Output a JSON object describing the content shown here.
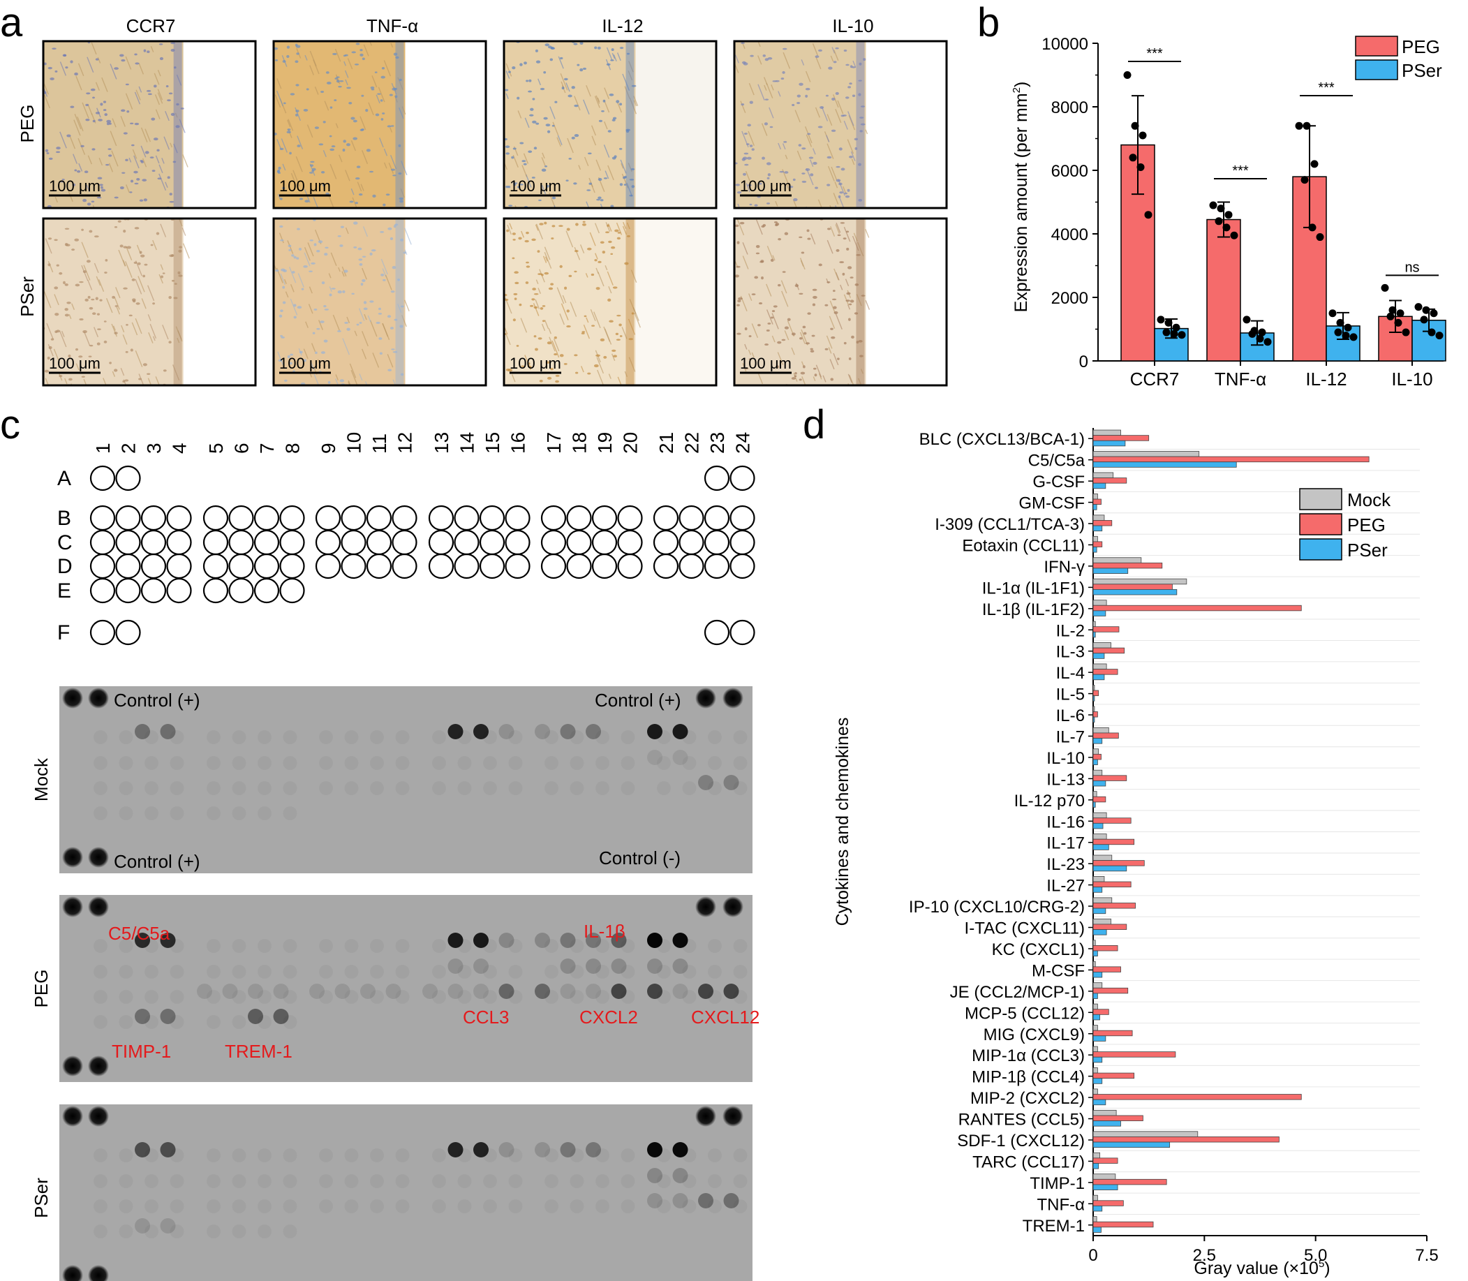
{
  "panels": {
    "a": "a",
    "b": "b",
    "c": "c",
    "d": "d"
  },
  "panel_a": {
    "columns": [
      "CCR7",
      "TNF-α",
      "IL-12",
      "IL-10"
    ],
    "rows": [
      "PEG",
      "PSer"
    ],
    "scale_bar": "100 μm",
    "tile_palettes": [
      [
        "#dcc59b",
        "#6f79b3",
        "#ffffff"
      ],
      [
        "#e2b873",
        "#6c8ec2",
        "#ffffff"
      ],
      [
        "#e6cfa6",
        "#5e82bd",
        "#f7f4ee"
      ],
      [
        "#e0cba4",
        "#7a84b8",
        "#ffffff"
      ],
      [
        "#e9d8bf",
        "#b08d6a",
        "#ffffff"
      ],
      [
        "#e6c79c",
        "#9ab4d6",
        "#ffffff"
      ],
      [
        "#f0e1c7",
        "#c08a3e",
        "#fbf8f2"
      ],
      [
        "#e8d8c0",
        "#a47c5c",
        "#ffffff"
      ]
    ]
  },
  "panel_b": {
    "chart_data": {
      "type": "bar",
      "categories": [
        "CCR7",
        "TNF-α",
        "IL-12",
        "IL-10"
      ],
      "series": [
        {
          "name": "PEG",
          "color": "#f56b6b",
          "values": [
            6800,
            4450,
            5800,
            1400
          ],
          "errors": [
            1550,
            550,
            1600,
            500
          ],
          "points": [
            [
              9000,
              7400,
              7100,
              6400,
              6100,
              4600
            ],
            [
              4900,
              4800,
              4600,
              4400,
              4200,
              3950
            ],
            [
              7400,
              7400,
              6200,
              5700,
              4200,
              3900
            ],
            [
              2300,
              1600,
              1500,
              1400,
              1200,
              900
            ]
          ]
        },
        {
          "name": "PSer",
          "color": "#3fb2ee",
          "values": [
            1020,
            880,
            1100,
            1280
          ],
          "errors": [
            300,
            380,
            420,
            350
          ],
          "points": [
            [
              1300,
              1200,
              1050,
              900,
              850,
              820
            ],
            [
              1300,
              950,
              900,
              850,
              700,
              600
            ],
            [
              1500,
              1200,
              1050,
              900,
              800,
              750
            ],
            [
              1700,
              1600,
              1500,
              1300,
              900,
              800
            ]
          ]
        }
      ],
      "significance": [
        "***",
        "***",
        "***",
        "ns"
      ],
      "ylabel_main": "Expression amount (per mm",
      "ylabel_sup": "2",
      "ylabel_close": ")",
      "yticks": [
        "0",
        "2000",
        "4000",
        "6000",
        "8000",
        "10000"
      ],
      "ylim": [
        0,
        10000
      ],
      "legend": [
        "PEG",
        "PSer"
      ]
    }
  },
  "panel_c": {
    "columns": [
      "1",
      "2",
      "3",
      "4",
      "5",
      "6",
      "7",
      "8",
      "9",
      "10",
      "11",
      "12",
      "13",
      "14",
      "15",
      "16",
      "17",
      "18",
      "19",
      "20",
      "21",
      "22",
      "23",
      "24"
    ],
    "rows": [
      "A",
      "B",
      "C",
      "D",
      "E",
      "F"
    ],
    "blots": [
      {
        "label": "Mock",
        "annotations": [
          {
            "text": "Control (+)",
            "color": "#000000"
          },
          {
            "text": "Control (+)",
            "color": "#000000"
          },
          {
            "text": "Control (+)",
            "color": "#000000"
          },
          {
            "text": "Control (-)",
            "color": "#000000"
          }
        ]
      },
      {
        "label": "PEG",
        "annotations": [
          {
            "text": "C5/C5a",
            "color": "#e41a1c"
          },
          {
            "text": "IL-1β",
            "color": "#e41a1c"
          },
          {
            "text": "CCL3",
            "color": "#e41a1c"
          },
          {
            "text": "CXCL2",
            "color": "#e41a1c"
          },
          {
            "text": "CXCL12",
            "color": "#e41a1c"
          },
          {
            "text": "TIMP-1",
            "color": "#e41a1c"
          },
          {
            "text": "TREM-1",
            "color": "#e41a1c"
          }
        ]
      },
      {
        "label": "PSer",
        "annotations": []
      }
    ]
  },
  "panel_d": {
    "chart_data": {
      "type": "bar",
      "orientation": "horizontal",
      "categories": [
        "BLC (CXCL13/BCA-1)",
        "C5/C5a",
        "G-CSF",
        "GM-CSF",
        "I-309 (CCL1/TCA-3)",
        "Eotaxin (CCL11)",
        "IFN-γ",
        "IL-1α (IL-1F1)",
        "IL-1β (IL-1F2)",
        "IL-2",
        "IL-3",
        "IL-4",
        "IL-5",
        "IL-6",
        "IL-7",
        "IL-10",
        "IL-13",
        "IL-12 p70",
        "IL-16",
        "IL-17",
        "IL-23",
        "IL-27",
        "IP-10 (CXCL10/CRG-2)",
        "I-TAC (CXCL11)",
        "KC (CXCL1)",
        "M-CSF",
        "JE (CCL2/MCP-1)",
        "MCP-5 (CCL12)",
        "MIG (CXCL9)",
        "MIP-1α (CCL3)",
        "MIP-1β (CCL4)",
        "MIP-2 (CXCL2)",
        "RANTES (CCL5)",
        "SDF-1 (CXCL12)",
        "TARC (CCL17)",
        "TIMP-1",
        "TNF-α",
        "TREM-1"
      ],
      "series": [
        {
          "name": "Mock",
          "color": "#c4c4c4",
          "values": [
            0.62,
            2.38,
            0.45,
            0.1,
            0.25,
            0.1,
            1.08,
            2.1,
            0.3,
            0.05,
            0.4,
            0.3,
            0.03,
            0.03,
            0.35,
            0.12,
            0.2,
            0.08,
            0.3,
            0.3,
            0.42,
            0.25,
            0.42,
            0.4,
            0.05,
            0.05,
            0.2,
            0.1,
            0.1,
            0.1,
            0.1,
            0.1,
            0.52,
            2.35,
            0.15,
            0.5,
            0.1,
            0.08
          ]
        },
        {
          "name": "PEG",
          "color": "#f56b6b",
          "values": [
            1.25,
            6.2,
            0.75,
            0.18,
            0.42,
            0.2,
            1.55,
            1.78,
            4.68,
            0.58,
            0.7,
            0.55,
            0.12,
            0.1,
            0.57,
            0.18,
            0.75,
            0.28,
            0.85,
            0.92,
            1.15,
            0.85,
            0.95,
            0.75,
            0.55,
            0.62,
            0.78,
            0.35,
            0.88,
            1.85,
            0.92,
            4.68,
            1.12,
            4.18,
            0.55,
            1.65,
            0.68,
            1.35
          ]
        },
        {
          "name": "PSer",
          "color": "#3fb2ee",
          "values": [
            0.72,
            3.22,
            0.28,
            0.08,
            0.2,
            0.08,
            0.78,
            1.88,
            0.28,
            0.05,
            0.25,
            0.25,
            0.03,
            0.03,
            0.2,
            0.1,
            0.28,
            0.05,
            0.22,
            0.35,
            0.75,
            0.2,
            0.28,
            0.3,
            0.1,
            0.2,
            0.1,
            0.15,
            0.28,
            0.2,
            0.2,
            0.28,
            0.62,
            1.72,
            0.12,
            0.55,
            0.2,
            0.18
          ]
        }
      ],
      "xticks": [
        "0",
        "2.5",
        "5.0",
        "7.5"
      ],
      "xlim": [
        0,
        7.5
      ],
      "xlabel_main": "Gray value (×10",
      "xlabel_sup": "5",
      "xlabel_close": ")",
      "ylabel": "Cytokines and chemokines",
      "legend": [
        "Mock",
        "PEG",
        "PSer"
      ]
    }
  }
}
